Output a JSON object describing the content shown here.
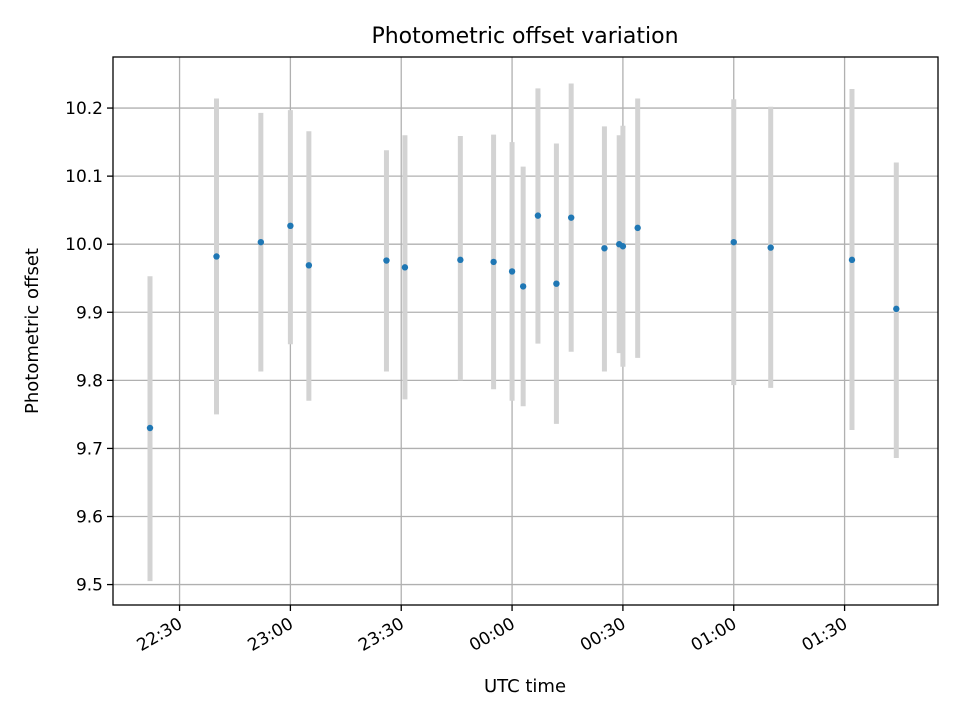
{
  "chart_data": {
    "type": "scatter",
    "title": "Photometric offset variation",
    "xlabel": "UTC time",
    "ylabel": "Photometric offset",
    "x_unit": "UTC time (HH:MM)",
    "xlim": [
      "22:22",
      "01:45"
    ],
    "ylim": [
      9.47,
      10.275
    ],
    "grid": true,
    "legend": "none",
    "x_ticks": [
      "22:30",
      "23:00",
      "23:30",
      "00:00",
      "00:30",
      "01:00",
      "01:30"
    ],
    "y_ticks": [
      "9.5",
      "9.6",
      "9.7",
      "9.8",
      "9.9",
      "10.0",
      "10.1",
      "10.2"
    ],
    "colors": {
      "points": "#1f77b4",
      "errorbars": "#d3d3d3",
      "grid": "#b0b0b0"
    },
    "series": [
      {
        "points": [
          {
            "x": "22:22",
            "y": 9.73,
            "ylow": 9.505,
            "yhigh": 9.953
          },
          {
            "x": "22:40",
            "y": 9.982,
            "ylow": 9.75,
            "yhigh": 10.214
          },
          {
            "x": "22:52",
            "y": 10.003,
            "ylow": 9.813,
            "yhigh": 10.193
          },
          {
            "x": "23:00",
            "y": 10.027,
            "ylow": 9.853,
            "yhigh": 10.197
          },
          {
            "x": "23:05",
            "y": 9.969,
            "ylow": 9.77,
            "yhigh": 10.166
          },
          {
            "x": "23:26",
            "y": 9.976,
            "ylow": 9.813,
            "yhigh": 10.138
          },
          {
            "x": "23:31",
            "y": 9.966,
            "ylow": 9.772,
            "yhigh": 10.16
          },
          {
            "x": "23:46",
            "y": 9.977,
            "ylow": 9.8,
            "yhigh": 10.159
          },
          {
            "x": "23:55",
            "y": 9.974,
            "ylow": 9.787,
            "yhigh": 10.161
          },
          {
            "x": "00:00",
            "y": 9.96,
            "ylow": 9.77,
            "yhigh": 10.15
          },
          {
            "x": "00:03",
            "y": 9.938,
            "ylow": 9.762,
            "yhigh": 10.114
          },
          {
            "x": "00:07",
            "y": 10.042,
            "ylow": 9.854,
            "yhigh": 10.229
          },
          {
            "x": "00:12",
            "y": 9.942,
            "ylow": 9.736,
            "yhigh": 10.148
          },
          {
            "x": "00:16",
            "y": 10.039,
            "ylow": 9.842,
            "yhigh": 10.236
          },
          {
            "x": "00:25",
            "y": 9.994,
            "ylow": 9.813,
            "yhigh": 10.173
          },
          {
            "x": "00:29",
            "y": 10.0,
            "ylow": 9.84,
            "yhigh": 10.16
          },
          {
            "x": "00:30",
            "y": 9.997,
            "ylow": 9.82,
            "yhigh": 10.174
          },
          {
            "x": "00:34",
            "y": 10.024,
            "ylow": 9.833,
            "yhigh": 10.214
          },
          {
            "x": "01:00",
            "y": 10.003,
            "ylow": 9.793,
            "yhigh": 10.213
          },
          {
            "x": "01:10",
            "y": 9.995,
            "ylow": 9.789,
            "yhigh": 10.202
          },
          {
            "x": "01:32",
            "y": 9.977,
            "ylow": 9.727,
            "yhigh": 10.228
          },
          {
            "x": "01:44",
            "y": 9.905,
            "ylow": 9.686,
            "yhigh": 10.12
          }
        ]
      }
    ]
  }
}
